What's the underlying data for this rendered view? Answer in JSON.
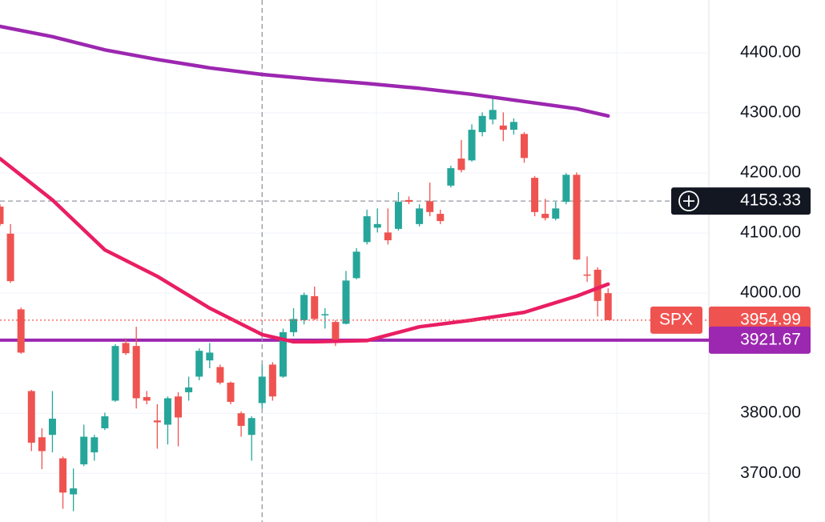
{
  "chart_data": {
    "type": "candlestick",
    "symbol": "SPX",
    "ylim": [
      3619,
      4488
    ],
    "yticks": [
      {
        "value": 3700,
        "label": "3700.00"
      },
      {
        "value": 3800,
        "label": "3800.00"
      },
      {
        "value": 4000,
        "label": "4000.00"
      },
      {
        "value": 4100,
        "label": "4100.00"
      },
      {
        "value": 4200,
        "label": "4200.00"
      },
      {
        "value": 4300,
        "label": "4300.00"
      },
      {
        "value": 4400,
        "label": "4400.00"
      }
    ],
    "grid": true,
    "up_color": "#26a69a",
    "down_color": "#ef5350",
    "candles": {
      "open": [
        4144,
        4099,
        3973,
        3837,
        3760,
        3764,
        3725,
        3665,
        3715,
        3735,
        3775,
        3821,
        3917,
        3912,
        3827,
        3788,
        3781,
        3828,
        3835,
        3861,
        3888,
        3877,
        3851,
        3800,
        3764,
        3817,
        3881,
        3861,
        3935,
        3955,
        3995,
        3964,
        3952,
        3949,
        4025,
        4085,
        4109,
        4101,
        4107,
        4155,
        4115,
        4153,
        4132,
        4179,
        4224,
        4221,
        4268,
        4289,
        4279,
        4272,
        4265,
        4192,
        4132,
        4124,
        4152,
        4197,
        4031,
        4039,
        4000
      ],
      "high": [
        4148,
        4115,
        3976,
        3839,
        3775,
        3837,
        3728,
        3708,
        3781,
        3764,
        3801,
        3915,
        3925,
        3944,
        3837,
        3815,
        3828,
        3835,
        3861,
        3908,
        3917,
        3881,
        3853,
        3803,
        3795,
        3881,
        3885,
        3941,
        3975,
        4001,
        4011,
        3975,
        3955,
        4037,
        4075,
        4139,
        4141,
        4141,
        4168,
        4161,
        4148,
        4184,
        4139,
        4212,
        4255,
        4281,
        4301,
        4325,
        4301,
        4291,
        4268,
        4195,
        4157,
        4152,
        4200,
        4201,
        4061,
        4043,
        4008
      ],
      "low": [
        4112,
        4017,
        3899,
        3737,
        3707,
        3735,
        3641,
        3637,
        3712,
        3721,
        3772,
        3819,
        3897,
        3808,
        3815,
        3741,
        3748,
        3745,
        3821,
        3855,
        3875,
        3848,
        3815,
        3761,
        3721,
        3808,
        3821,
        3859,
        3928,
        3948,
        3955,
        3941,
        3912,
        3948,
        4023,
        4081,
        4101,
        4081,
        4104,
        4148,
        4111,
        4128,
        4115,
        4176,
        4201,
        4219,
        4261,
        4281,
        4253,
        4264,
        4217,
        4128,
        4121,
        4121,
        4148,
        4055,
        4019,
        3961,
        3954.99
      ],
      "close": [
        4115,
        4020,
        3901,
        3751,
        3737,
        3791,
        3668,
        3675,
        3761,
        3760,
        3795,
        3912,
        3900,
        3825,
        3821,
        3785,
        3825,
        3793,
        3843,
        3904,
        3901,
        3851,
        3819,
        3779,
        3792,
        3861,
        3828,
        3935,
        3957,
        3997,
        3957,
        3965,
        3917,
        4021,
        4069,
        4128,
        4115,
        4088,
        4152,
        4152,
        4141,
        4135,
        4120,
        4208,
        4205,
        4272,
        4295,
        4305,
        4272,
        4285,
        4225,
        4135,
        4125,
        4141,
        4197,
        4056,
        4029,
        3987,
        3954.99
      ]
    },
    "series": [
      {
        "color": "#9c27b0",
        "x": [
          0,
          5,
          10,
          15,
          20,
          25,
          30,
          35,
          40,
          45,
          50,
          55,
          58
        ],
        "values": [
          4444,
          4427,
          4405,
          4389,
          4375,
          4364,
          4356,
          4349,
          4341,
          4331,
          4319,
          4307,
          4295
        ]
      },
      {
        "color": "#e91e63",
        "x": [
          0,
          5,
          10,
          15,
          20,
          25,
          28,
          30,
          35,
          40,
          45,
          50,
          55,
          58
        ],
        "values": [
          4224,
          4155,
          4072,
          4028,
          3975,
          3931,
          3919,
          3919,
          3921,
          3944,
          3955,
          3968,
          3995,
          4015
        ]
      }
    ],
    "hline": {
      "value": 3921.67,
      "color": "#9c27b0"
    },
    "last_price": {
      "value": 3954.99,
      "color": "#ef5350"
    },
    "crosshair": {
      "index": 25,
      "value": 4153.33
    }
  }
}
